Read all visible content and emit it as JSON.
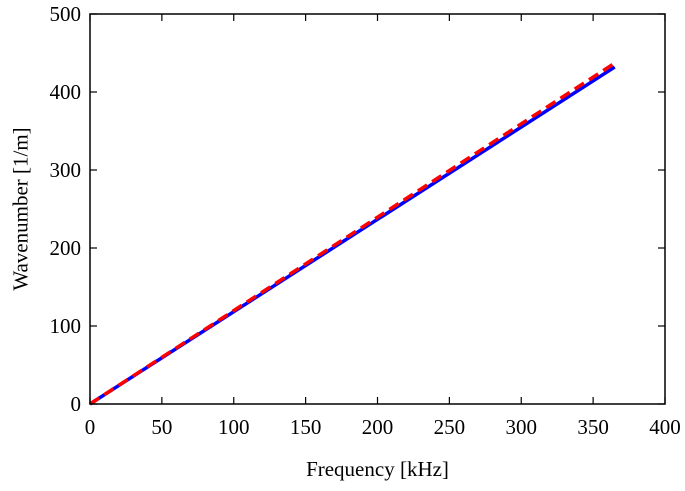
{
  "chart_data": {
    "type": "line",
    "xlabel": "Frequency [kHz]",
    "ylabel": "Wavenumber [1/m]",
    "xlim": [
      0,
      400
    ],
    "ylim": [
      0,
      500
    ],
    "xticks": [
      0,
      50,
      100,
      150,
      200,
      250,
      300,
      350,
      400
    ],
    "yticks": [
      0,
      100,
      200,
      300,
      400,
      500
    ],
    "grid": false,
    "series": [
      {
        "style": "solid",
        "color": "#0000ff",
        "x": [
          0,
          365
        ],
        "y": [
          0,
          432
        ]
      },
      {
        "style": "dashed",
        "color": "#ff0000",
        "x": [
          0,
          365
        ],
        "y": [
          0,
          437
        ]
      }
    ]
  }
}
